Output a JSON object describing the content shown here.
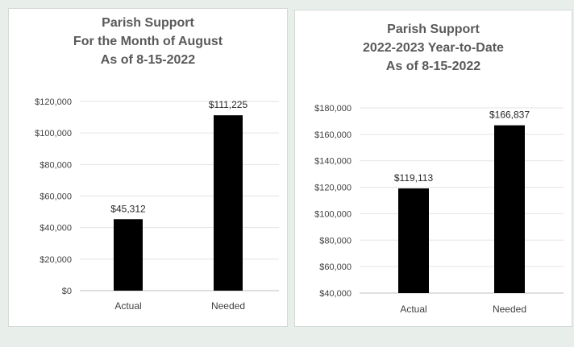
{
  "chart_data": [
    {
      "type": "bar",
      "title": [
        "Parish Support",
        "For the Month of August",
        "As of 8-15-2022"
      ],
      "categories": [
        "Actual",
        "Needed"
      ],
      "values": [
        45312,
        111225
      ],
      "value_labels": [
        "$45,312",
        "$111,225"
      ],
      "yticks": [
        "$0",
        "$20,000",
        "$40,000",
        "$60,000",
        "$80,000",
        "$100,000",
        "$120,000"
      ],
      "ylim": [
        0,
        120000
      ],
      "xlabel": "",
      "ylabel": "",
      "grid": true,
      "legend": "none",
      "bar_color": "#000000"
    },
    {
      "type": "bar",
      "title": [
        "Parish Support",
        "2022-2023 Year-to-Date",
        "As of 8-15-2022"
      ],
      "categories": [
        "Actual",
        "Needed"
      ],
      "values": [
        119113,
        166837
      ],
      "value_labels": [
        "$119,113",
        "$166,837"
      ],
      "yticks": [
        "$40,000",
        "$60,000",
        "$80,000",
        "$100,000",
        "$120,000",
        "$140,000",
        "$160,000",
        "$180,000"
      ],
      "ylim": [
        40000,
        180000
      ],
      "xlabel": "",
      "ylabel": "",
      "grid": true,
      "legend": "none",
      "bar_color": "#000000"
    }
  ]
}
